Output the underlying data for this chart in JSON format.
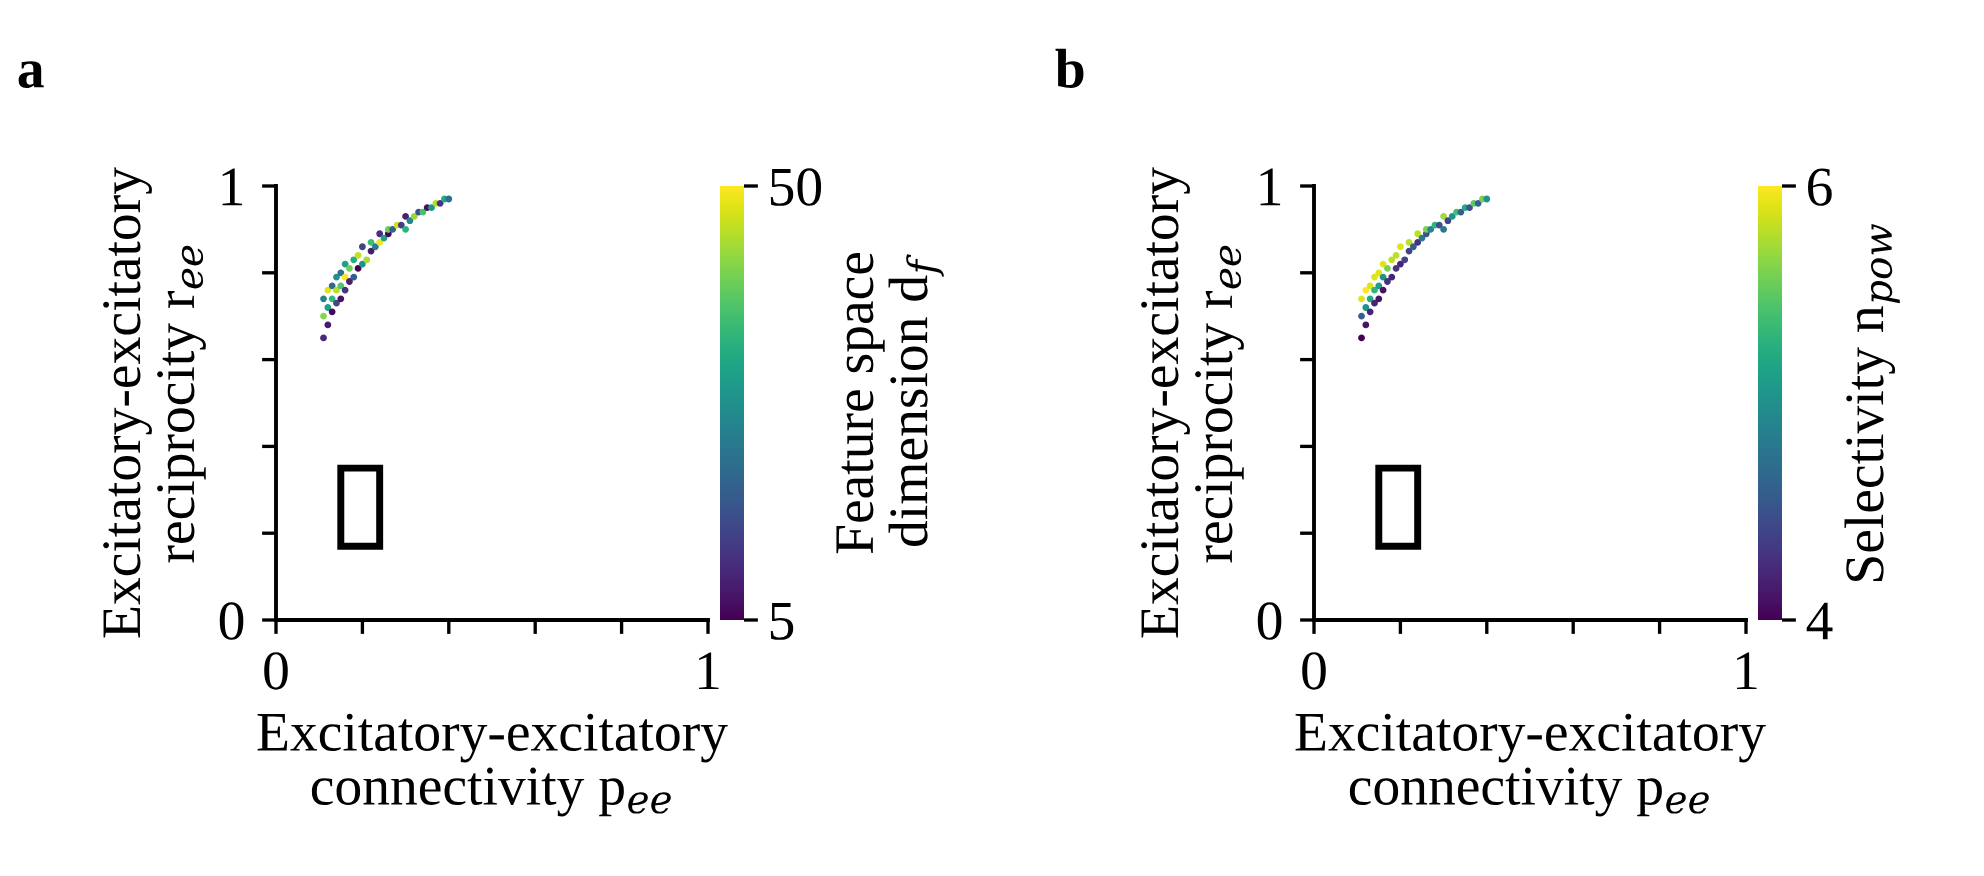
{
  "chart_data": [
    {
      "type": "scatter",
      "title": "a",
      "xlabel": "Excitatory-excitatory\nconnectivity p$_{ee}$",
      "ylabel": "Excitatory-excitatory\nreciprocity r$_{ee}$",
      "clabel": "Feature space\ndimension d$_{f}$",
      "xlim": [
        0,
        1
      ],
      "ylim": [
        0,
        1
      ],
      "xticks": [
        0,
        {
          "value": 0.2,
          "label": null
        },
        {
          "value": 0.4,
          "label": null
        },
        {
          "value": 0.6,
          "label": null
        },
        {
          "value": 0.8,
          "label": null
        },
        1
      ],
      "yticks": [
        0,
        {
          "value": 0.2,
          "label": null
        },
        {
          "value": 0.4,
          "label": null
        },
        {
          "value": 0.6,
          "label": null
        },
        {
          "value": 0.8,
          "label": null
        },
        1
      ],
      "clim": [
        5,
        50
      ],
      "cticks": [
        5,
        50
      ],
      "grid": false,
      "legend": false,
      "series": [
        {
          "x": [
            0.11,
            0.11,
            0.11,
            0.12,
            0.12,
            0.12,
            0.13,
            0.13,
            0.13,
            0.14,
            0.14,
            0.14,
            0.15,
            0.15,
            0.15,
            0.16,
            0.16,
            0.16,
            0.17,
            0.17,
            0.18,
            0.18,
            0.19,
            0.19,
            0.2,
            0.2,
            0.21,
            0.22,
            0.22,
            0.23,
            0.24,
            0.24,
            0.25,
            0.26,
            0.26,
            0.27,
            0.28,
            0.29,
            0.3,
            0.3,
            0.31,
            0.32,
            0.33,
            0.34,
            0.35,
            0.36,
            0.37,
            0.38,
            0.39,
            0.4
          ],
          "values": [
            0.65,
            0.7,
            0.74,
            0.68,
            0.72,
            0.76,
            0.71,
            0.74,
            0.77,
            0.73,
            0.76,
            0.79,
            0.74,
            0.77,
            0.8,
            0.76,
            0.79,
            0.82,
            0.78,
            0.81,
            0.79,
            0.83,
            0.81,
            0.84,
            0.82,
            0.86,
            0.83,
            0.85,
            0.87,
            0.86,
            0.87,
            0.89,
            0.88,
            0.89,
            0.9,
            0.9,
            0.91,
            0.91,
            0.9,
            0.93,
            0.92,
            0.93,
            0.94,
            0.94,
            0.95,
            0.95,
            0.96,
            0.96,
            0.97,
            0.97
          ],
          "cvalues": [
            10,
            42,
            25,
            8,
            30,
            48,
            6,
            35,
            20,
            15,
            45,
            28,
            7,
            38,
            22,
            12,
            50,
            30,
            9,
            40,
            18,
            33,
            5,
            46,
            27,
            14,
            44,
            8,
            36,
            24,
            49,
            11,
            31,
            6,
            40,
            19,
            47,
            13,
            34,
            9,
            26,
            43,
            16,
            37,
            7,
            29,
            45,
            12,
            32,
            21
          ]
        }
      ]
    },
    {
      "type": "scatter",
      "title": "b",
      "xlabel": "Excitatory-excitatory\nconnectivity p$_{ee}$",
      "ylabel": "Excitatory-excitatory\nreciprocity r$_{ee}$",
      "clabel": "Selectivity n$_{pow}$",
      "xlim": [
        0,
        1
      ],
      "ylim": [
        0,
        1
      ],
      "xticks": [
        0,
        {
          "value": 0.2,
          "label": null
        },
        {
          "value": 0.4,
          "label": null
        },
        {
          "value": 0.6,
          "label": null
        },
        {
          "value": 0.8,
          "label": null
        },
        1
      ],
      "yticks": [
        0,
        {
          "value": 0.2,
          "label": null
        },
        {
          "value": 0.4,
          "label": null
        },
        {
          "value": 0.6,
          "label": null
        },
        {
          "value": 0.8,
          "label": null
        },
        1
      ],
      "clim": [
        4,
        6
      ],
      "cticks": [
        4,
        6
      ],
      "grid": false,
      "legend": false,
      "series": [
        {
          "x": [
            0.11,
            0.11,
            0.11,
            0.12,
            0.12,
            0.12,
            0.13,
            0.13,
            0.13,
            0.14,
            0.14,
            0.14,
            0.15,
            0.15,
            0.15,
            0.16,
            0.16,
            0.16,
            0.17,
            0.17,
            0.18,
            0.18,
            0.19,
            0.19,
            0.2,
            0.2,
            0.21,
            0.22,
            0.22,
            0.23,
            0.24,
            0.24,
            0.25,
            0.26,
            0.26,
            0.27,
            0.28,
            0.29,
            0.3,
            0.3,
            0.31,
            0.32,
            0.33,
            0.34,
            0.35,
            0.36,
            0.37,
            0.38,
            0.39,
            0.4
          ],
          "values": [
            0.65,
            0.7,
            0.74,
            0.68,
            0.72,
            0.76,
            0.71,
            0.74,
            0.77,
            0.73,
            0.76,
            0.79,
            0.74,
            0.77,
            0.8,
            0.76,
            0.79,
            0.82,
            0.78,
            0.81,
            0.79,
            0.83,
            0.81,
            0.84,
            0.82,
            0.86,
            0.83,
            0.85,
            0.87,
            0.86,
            0.87,
            0.89,
            0.88,
            0.89,
            0.9,
            0.9,
            0.91,
            0.91,
            0.9,
            0.93,
            0.92,
            0.93,
            0.94,
            0.94,
            0.95,
            0.95,
            0.96,
            0.96,
            0.97,
            0.97
          ],
          "cvalues": [
            4.0,
            4.6,
            5.9,
            4.1,
            5.0,
            6.0,
            4.2,
            5.2,
            5.9,
            4.2,
            5.3,
            5.9,
            4.1,
            5.1,
            5.9,
            4.1,
            5.0,
            5.9,
            4.3,
            5.6,
            4.2,
            5.8,
            4.3,
            5.8,
            4.2,
            5.9,
            4.4,
            4.4,
            5.8,
            4.6,
            4.3,
            5.8,
            4.8,
            4.5,
            5.6,
            4.9,
            5.3,
            4.5,
            4.8,
            5.7,
            4.4,
            5.0,
            5.4,
            4.6,
            5.2,
            4.5,
            5.5,
            4.6,
            5.6,
            5.0
          ]
        }
      ]
    }
  ]
}
